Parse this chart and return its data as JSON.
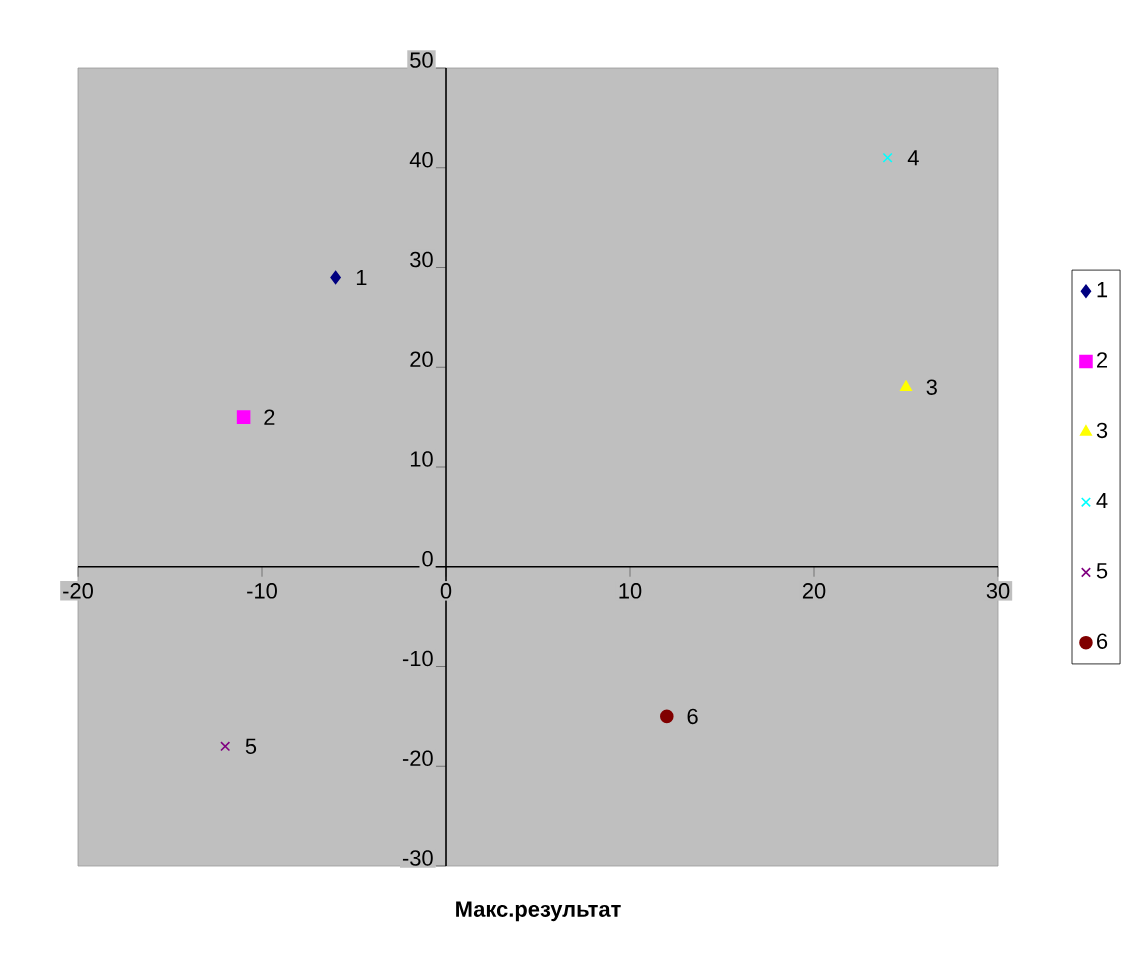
{
  "chart_data": {
    "type": "scatter",
    "xlabel": "Макс.результат",
    "xlim": [
      -20,
      30
    ],
    "xticks": [
      -20,
      -10,
      0,
      10,
      20,
      30
    ],
    "ylim": [
      -30,
      50
    ],
    "yticks": [
      -30,
      -20,
      -10,
      0,
      10,
      20,
      30,
      40,
      50
    ],
    "grid": false,
    "legend": "right",
    "series": [
      {
        "name": "1",
        "color": "#000080",
        "marker": "diamond",
        "x": [
          -6
        ],
        "values": [
          29
        ]
      },
      {
        "name": "2",
        "color": "#ff00ff",
        "marker": "square",
        "x": [
          -11
        ],
        "values": [
          15
        ]
      },
      {
        "name": "3",
        "color": "#ffff00",
        "marker": "triangle",
        "x": [
          25
        ],
        "values": [
          18
        ]
      },
      {
        "name": "4",
        "color": "#00ffff",
        "marker": "cross",
        "x": [
          24
        ],
        "values": [
          41
        ]
      },
      {
        "name": "5",
        "color": "#800080",
        "marker": "cross",
        "x": [
          -12
        ],
        "values": [
          -18
        ]
      },
      {
        "name": "6",
        "color": "#800000",
        "marker": "circle",
        "x": [
          12
        ],
        "values": [
          -15
        ]
      }
    ],
    "annotations": [
      {
        "text": "1",
        "x": -6,
        "y": 29
      },
      {
        "text": "2",
        "x": -11,
        "y": 15
      },
      {
        "text": "3",
        "x": 25,
        "y": 18
      },
      {
        "text": "4",
        "x": 24,
        "y": 41
      },
      {
        "text": "5",
        "x": -12,
        "y": -18
      },
      {
        "text": "6",
        "x": 12,
        "y": -15
      }
    ]
  }
}
